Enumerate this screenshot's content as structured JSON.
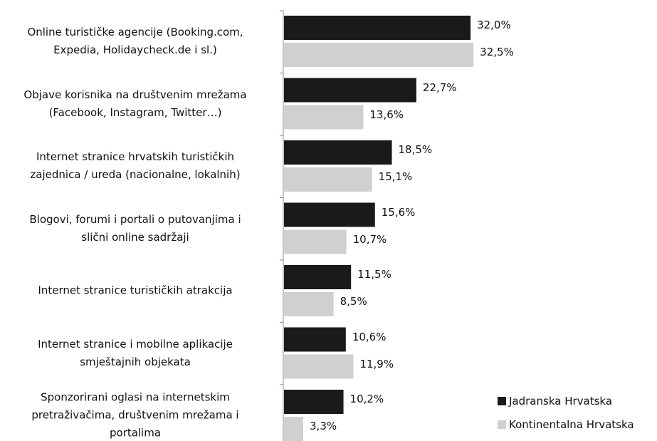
{
  "chart_data": {
    "type": "bar",
    "orientation": "horizontal",
    "categories": [
      "Online turističke agencije (Booking.com,\nExpedia, Holidaycheck.de i sl.)",
      "Objave korisnika na društvenim mrežama\n(Facebook, Instagram, Twitter…)",
      "Internet stranice hrvatskih turističkih\nzajednica / ureda (nacionalne, lokalnih)",
      "Blogovi, forumi i portali o putovanjima i\nslični online sadržaji",
      "Internet stranice turističkih atrakcija",
      "Internet stranice i mobilne aplikacije\nsmještajnih objekata",
      "Sponzorirani oglasi na internetskim\npretraživačima, društvenim mrežama i\nportalima"
    ],
    "series": [
      {
        "name": "Jadranska Hrvatska",
        "color": "#1a1a1a",
        "values": [
          32.0,
          22.7,
          18.5,
          15.6,
          11.5,
          10.6,
          10.2
        ],
        "value_labels": [
          "32,0%",
          "22,7%",
          "18,5%",
          "15,6%",
          "11,5%",
          "10,6%",
          "10,2%"
        ]
      },
      {
        "name": "Kontinentalna Hrvatska",
        "color": "#d0d0d0",
        "values": [
          32.5,
          13.6,
          15.1,
          10.7,
          8.5,
          11.9,
          3.3
        ],
        "value_labels": [
          "32,5%",
          "13,6%",
          "15,1%",
          "10,7%",
          "8,5%",
          "11,9%",
          "3,3%"
        ]
      }
    ],
    "legend": "bottom-right"
  }
}
